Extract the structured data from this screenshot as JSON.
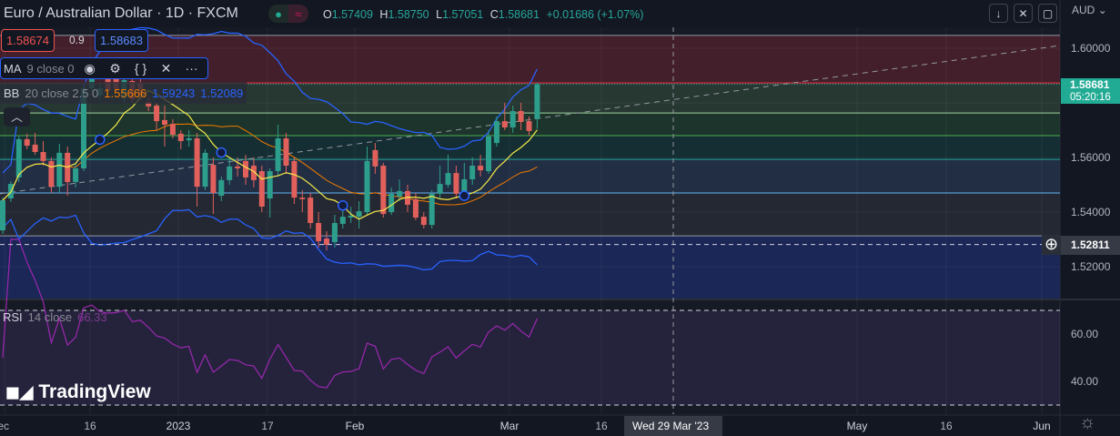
{
  "header": {
    "title": "Euro / Australian Dollar · 1D · FXCM",
    "status_dot": "●",
    "status_wave": "≈",
    "ohlc": {
      "o_label": "O",
      "o": "1.57409",
      "h_label": "H",
      "h": "1.58750",
      "l_label": "L",
      "l": "1.57051",
      "c_label": "C",
      "c": "1.58681",
      "change": "+0.01686 (+1.07%)"
    }
  },
  "trade": {
    "sell": "1.58674",
    "spread": "0.9",
    "buy": "1.58683"
  },
  "ma_legend": {
    "name": "MA",
    "params": "9 close 0"
  },
  "bb_legend": {
    "name": "BB",
    "params": "20 close 2.5 0",
    "basis": "1.55666",
    "upper": "1.59243",
    "lower": "1.52089"
  },
  "rsi_legend": {
    "name": "RSI",
    "params": "14 close",
    "value": "66.33"
  },
  "toolbar": {
    "icons": [
      "arrow-down-icon",
      "collapse-icon",
      "fullscreen-icon"
    ],
    "currency": "AUD"
  },
  "logo": "TradingView",
  "colors": {
    "up": "#26a69a",
    "down": "#ef5350",
    "ma": "#f5e94a",
    "bb_basis": "#f57c00",
    "bb_bands": "#2962ff",
    "rsi": "#9c27b0",
    "last_price": "#22ab94"
  },
  "chart_data": {
    "type": "candlestick",
    "symbol": "EURAUD",
    "interval": "1D",
    "ylim": [
      1.5133,
      1.6077
    ],
    "yticks": [
      "1.60000",
      "1.56000",
      "1.54000",
      "1.52000"
    ],
    "last_price": "1.58681",
    "countdown": "05:20:16",
    "crosshair_price": "1.52811",
    "crosshair_date": "Wed 29 Mar '23",
    "xticks": [
      "ec",
      "16",
      "2023",
      "17",
      "Feb",
      "Mar",
      "16",
      "May",
      "16",
      "Jun"
    ],
    "ohlc": [
      [
        1.5333,
        1.5453,
        1.532,
        1.5443
      ],
      [
        1.545,
        1.5513,
        1.5437,
        1.5503
      ],
      [
        1.5527,
        1.5677,
        1.551,
        1.5667
      ],
      [
        1.5667,
        1.5687,
        1.563,
        1.5643
      ],
      [
        1.5647,
        1.569,
        1.561,
        1.562
      ],
      [
        1.562,
        1.566,
        1.557,
        1.5587
      ],
      [
        1.5587,
        1.56,
        1.547,
        1.5493
      ],
      [
        1.5493,
        1.565,
        1.547,
        1.5617
      ],
      [
        1.5617,
        1.564,
        1.546,
        1.551
      ],
      [
        1.551,
        1.5577,
        1.549,
        1.556
      ],
      [
        1.556,
        1.586,
        1.555,
        1.5853
      ],
      [
        1.5853,
        1.591,
        1.584,
        1.5893
      ],
      [
        1.5827,
        1.587,
        1.581,
        1.5853
      ],
      [
        1.5893,
        1.592,
        1.583,
        1.5843
      ],
      [
        1.5893,
        1.593,
        1.584,
        1.585
      ],
      [
        1.5817,
        1.5893,
        1.58,
        1.5883
      ],
      [
        1.588,
        1.59,
        1.58,
        1.5813
      ],
      [
        1.5873,
        1.589,
        1.581,
        1.583
      ],
      [
        1.5803,
        1.582,
        1.577,
        1.5787
      ],
      [
        1.579,
        1.58,
        1.57,
        1.5733
      ],
      [
        1.5737,
        1.579,
        1.564,
        1.572
      ],
      [
        1.5723,
        1.574,
        1.567,
        1.5683
      ],
      [
        1.5687,
        1.57,
        1.563,
        1.566
      ],
      [
        1.5663,
        1.57,
        1.564,
        1.567
      ],
      [
        1.567,
        1.569,
        1.542,
        1.5493
      ],
      [
        1.5493,
        1.563,
        1.548,
        1.5617
      ],
      [
        1.5573,
        1.56,
        1.5393,
        1.547
      ],
      [
        1.546,
        1.553,
        1.544,
        1.5517
      ],
      [
        1.5517,
        1.56,
        1.55,
        1.5567
      ],
      [
        1.5567,
        1.56,
        1.553,
        1.556
      ],
      [
        1.5587,
        1.561,
        1.55,
        1.5527
      ],
      [
        1.557,
        1.56,
        1.549,
        1.5517
      ],
      [
        1.555,
        1.557,
        1.54,
        1.542
      ],
      [
        1.545,
        1.556,
        1.538,
        1.555
      ],
      [
        1.555,
        1.572,
        1.553,
        1.567
      ],
      [
        1.567,
        1.569,
        1.554,
        1.557
      ],
      [
        1.5587,
        1.56,
        1.543,
        1.5453
      ],
      [
        1.5453,
        1.548,
        1.54,
        1.5447
      ],
      [
        1.5453,
        1.547,
        1.534,
        1.536
      ],
      [
        1.536,
        1.54,
        1.527,
        1.5293
      ],
      [
        1.5303,
        1.533,
        1.526,
        1.528
      ],
      [
        1.529,
        1.539,
        1.527,
        1.536
      ],
      [
        1.5357,
        1.544,
        1.534,
        1.5383
      ],
      [
        1.538,
        1.542,
        1.536,
        1.5387
      ],
      [
        1.5383,
        1.544,
        1.534,
        1.5403
      ],
      [
        1.54,
        1.564,
        1.539,
        1.5587
      ],
      [
        1.5627,
        1.5653,
        1.554,
        1.5567
      ],
      [
        1.557,
        1.558,
        1.538,
        1.5393
      ],
      [
        1.54,
        1.549,
        1.539,
        1.5467
      ],
      [
        1.5457,
        1.552,
        1.544,
        1.5477
      ],
      [
        1.5477,
        1.55,
        1.54,
        1.5427
      ],
      [
        1.5447,
        1.547,
        1.537,
        1.538
      ],
      [
        1.5383,
        1.54,
        1.534,
        1.5353
      ],
      [
        1.5353,
        1.548,
        1.534,
        1.5467
      ],
      [
        1.5467,
        1.557,
        1.545,
        1.5503
      ],
      [
        1.55,
        1.561,
        1.549,
        1.5543
      ],
      [
        1.5543,
        1.557,
        1.545,
        1.5467
      ],
      [
        1.5467,
        1.558,
        1.545,
        1.552
      ],
      [
        1.552,
        1.56,
        1.55,
        1.557
      ],
      [
        1.557,
        1.561,
        1.553,
        1.5553
      ],
      [
        1.555,
        1.57,
        1.554,
        1.5677
      ],
      [
        1.5653,
        1.575,
        1.564,
        1.5733
      ],
      [
        1.5733,
        1.58,
        1.57,
        1.571
      ],
      [
        1.571,
        1.579,
        1.569,
        1.577
      ],
      [
        1.577,
        1.58,
        1.57,
        1.573
      ],
      [
        1.5733,
        1.575,
        1.568,
        1.5697
      ],
      [
        1.57409,
        1.5875,
        1.57051,
        1.58681
      ]
    ],
    "indicator_markers": [
      12,
      27,
      42,
      57
    ],
    "horizontal_levels": [
      1.6047,
      1.5873,
      1.5763,
      1.568,
      1.5593,
      1.547,
      1.5313
    ],
    "trend_line": {
      "from": 1.5467,
      "to": 1.601,
      "style": "dashed"
    },
    "rsi_levels": [
      70,
      30
    ],
    "rsi_yticks": [
      "60.00",
      "40.00"
    ]
  }
}
